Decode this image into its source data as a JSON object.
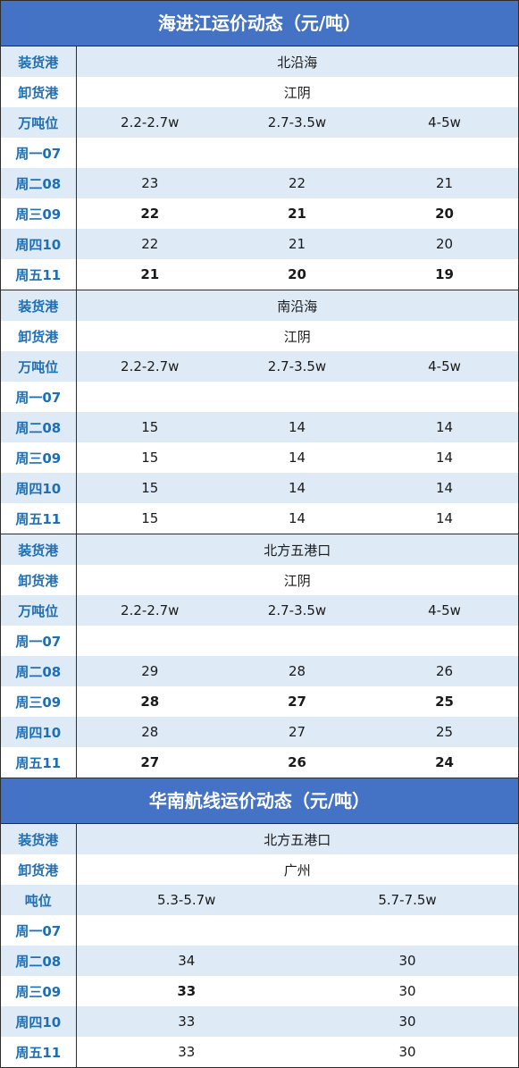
{
  "jiang": {
    "title": "海进江运价动态（元/吨）",
    "labels": {
      "load": "装货港",
      "unload": "卸货港",
      "tonnage": "万吨位"
    },
    "days": [
      "周一07",
      "周二08",
      "周三09",
      "周四10",
      "周五11"
    ],
    "sections": [
      {
        "load": "北沿海",
        "unload": "江阴",
        "tonnage": [
          "2.2-2.7w",
          "2.7-3.5w",
          "4-5w"
        ],
        "rows": [
          [
            "",
            "",
            ""
          ],
          [
            "23",
            "22",
            "21"
          ],
          [
            "22",
            "21",
            "20"
          ],
          [
            "22",
            "21",
            "20"
          ],
          [
            "21",
            "20",
            "19"
          ]
        ],
        "bold_rows": [
          2,
          4
        ]
      },
      {
        "load": "南沿海",
        "unload": "江阴",
        "tonnage": [
          "2.2-2.7w",
          "2.7-3.5w",
          "4-5w"
        ],
        "rows": [
          [
            "",
            "",
            ""
          ],
          [
            "15",
            "14",
            "14"
          ],
          [
            "15",
            "14",
            "14"
          ],
          [
            "15",
            "14",
            "14"
          ],
          [
            "15",
            "14",
            "14"
          ]
        ],
        "bold_rows": []
      },
      {
        "load": "北方五港口",
        "unload": "江阴",
        "tonnage": [
          "2.2-2.7w",
          "2.7-3.5w",
          "4-5w"
        ],
        "rows": [
          [
            "",
            "",
            ""
          ],
          [
            "29",
            "28",
            "26"
          ],
          [
            "28",
            "27",
            "25"
          ],
          [
            "28",
            "27",
            "25"
          ],
          [
            "27",
            "26",
            "24"
          ]
        ],
        "bold_rows": [
          2,
          4
        ]
      }
    ]
  },
  "south": {
    "title": "华南航线运价动态（元/吨）",
    "labels": {
      "load": "装货港",
      "unload": "卸货港",
      "tonnage": "吨位"
    },
    "load": "北方五港口",
    "unload": "广州",
    "tonnage": [
      "5.3-5.7w",
      "5.7-7.5w"
    ],
    "days": [
      "周一07",
      "周二08",
      "周三09",
      "周四10",
      "周五11"
    ],
    "rows": [
      [
        "",
        ""
      ],
      [
        "34",
        "30"
      ],
      [
        "33",
        "30"
      ],
      [
        "33",
        "30"
      ],
      [
        "33",
        "30"
      ]
    ],
    "bold_cells": [
      [
        2,
        0
      ]
    ]
  }
}
